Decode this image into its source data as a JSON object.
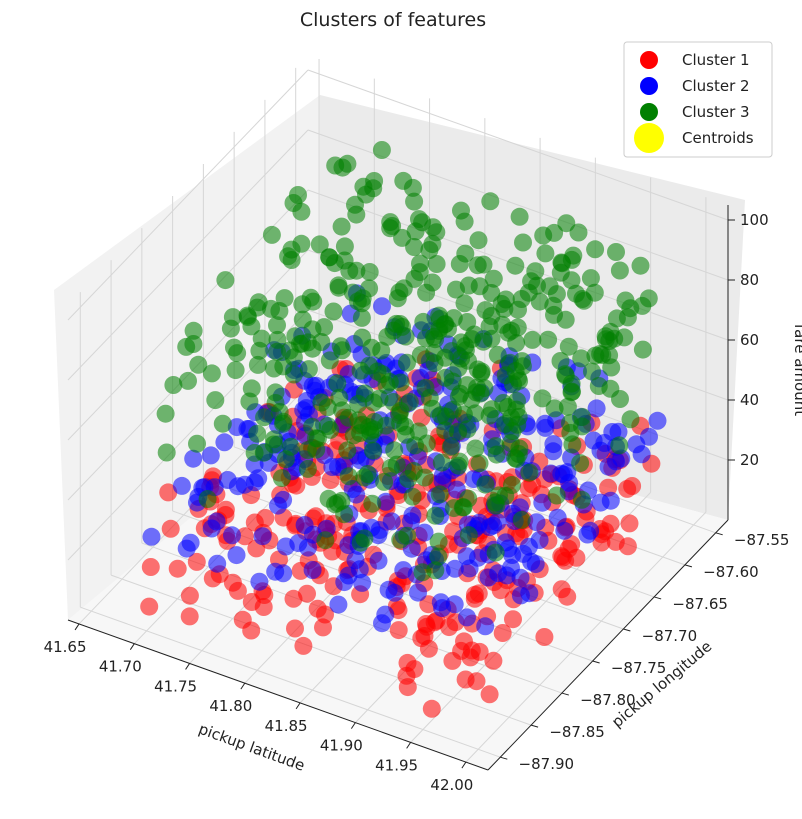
{
  "chart_data": {
    "type": "scatter",
    "projection": "3d",
    "title": "Clusters of features",
    "xlabel": "pickup latitude",
    "ylabel": "pickup longitude",
    "zlabel": "fare amount",
    "x_ticks": [
      "41.65",
      "41.70",
      "41.75",
      "41.80",
      "41.85",
      "41.90",
      "41.95",
      "42.00"
    ],
    "y_ticks": [
      "−87.55",
      "−87.60",
      "−87.65",
      "−87.70",
      "−87.75",
      "−87.80",
      "−87.85",
      "−87.90"
    ],
    "z_ticks": [
      "20",
      "40",
      "60",
      "80",
      "100"
    ],
    "xlim": [
      41.64,
      42.02
    ],
    "ylim": [
      -87.92,
      -87.53
    ],
    "zlim": [
      0,
      105
    ],
    "grid": true,
    "legend_position": "top-right",
    "series": [
      {
        "name": "Cluster 1",
        "color": "#ff0000",
        "z_range": [
          5,
          40
        ]
      },
      {
        "name": "Cluster 2",
        "color": "#0000ff",
        "z_range": [
          25,
          55
        ]
      },
      {
        "name": "Cluster 3",
        "color": "#008000",
        "z_range": [
          45,
          100
        ]
      },
      {
        "name": "Centroids",
        "color": "#ffff00"
      }
    ]
  }
}
